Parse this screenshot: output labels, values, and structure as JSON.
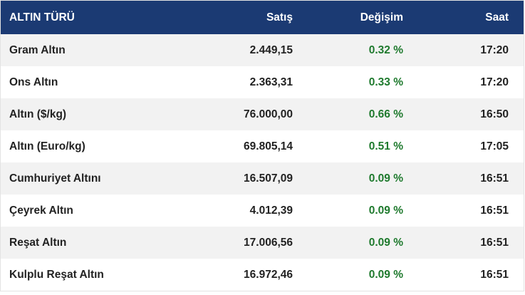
{
  "header": {
    "name": "ALTIN TÜRÜ",
    "sell": "Satış",
    "change": "Değişim",
    "time": "Saat"
  },
  "rows": [
    {
      "name": "Gram Altın",
      "sell": "2.449,15",
      "change": "0.32 %",
      "time": "17:20"
    },
    {
      "name": "Ons Altın",
      "sell": "2.363,31",
      "change": "0.33 %",
      "time": "17:20"
    },
    {
      "name": "Altın ($/kg)",
      "sell": "76.000,00",
      "change": "0.66 %",
      "time": "16:50"
    },
    {
      "name": "Altın (Euro/kg)",
      "sell": "69.805,14",
      "change": "0.51 %",
      "time": "17:05"
    },
    {
      "name": "Cumhuriyet Altını",
      "sell": "16.507,09",
      "change": "0.09 %",
      "time": "16:51"
    },
    {
      "name": "Çeyrek Altın",
      "sell": "4.012,39",
      "change": "0.09 %",
      "time": "16:51"
    },
    {
      "name": "Reşat Altın",
      "sell": "17.006,56",
      "change": "0.09 %",
      "time": "16:51"
    },
    {
      "name": "Kulplu Reşat Altın",
      "sell": "16.972,46",
      "change": "0.09 %",
      "time": "16:51"
    }
  ],
  "colors": {
    "header_bg": "#1b3a73",
    "positive_change": "#1f7a2e"
  }
}
